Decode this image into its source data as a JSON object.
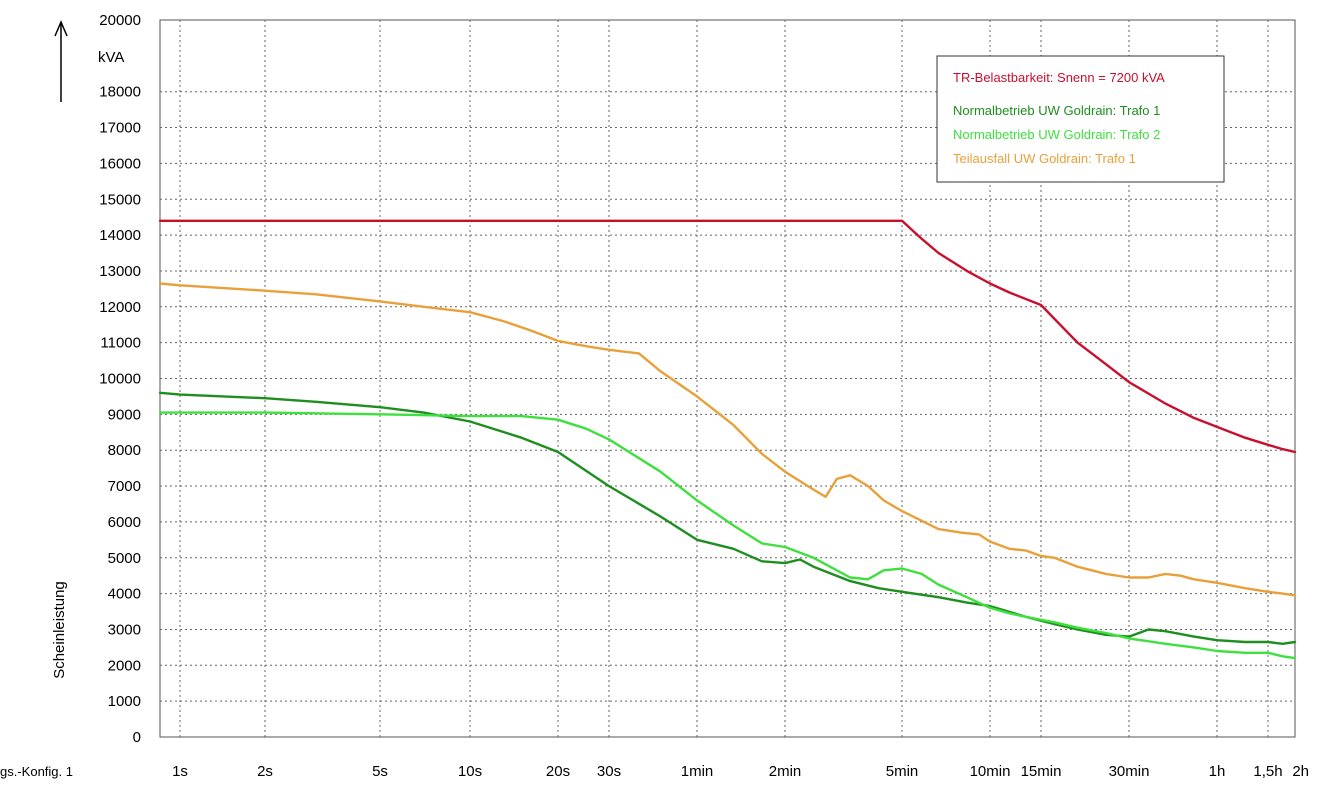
{
  "footnote": "gs.-Konfig. 1",
  "chart_data": {
    "type": "line",
    "title": "",
    "xlabel": "",
    "ylabel": "Scheinleistung",
    "yunit": "kVA",
    "xscale": "log",
    "ylim": [
      0,
      20000
    ],
    "y_ticks": [
      0,
      1000,
      2000,
      3000,
      4000,
      5000,
      6000,
      7000,
      8000,
      9000,
      10000,
      11000,
      12000,
      13000,
      14000,
      15000,
      16000,
      17000,
      18000,
      20000
    ],
    "x_ticks": [
      {
        "label": "1s",
        "seconds": 1
      },
      {
        "label": "2s",
        "seconds": 2
      },
      {
        "label": "5s",
        "seconds": 5
      },
      {
        "label": "10s",
        "seconds": 10
      },
      {
        "label": "20s",
        "seconds": 20
      },
      {
        "label": "30s",
        "seconds": 30
      },
      {
        "label": "1min",
        "seconds": 60
      },
      {
        "label": "2min",
        "seconds": 120
      },
      {
        "label": "5min",
        "seconds": 300
      },
      {
        "label": "10min",
        "seconds": 600
      },
      {
        "label": "15min",
        "seconds": 900
      },
      {
        "label": "30min",
        "seconds": 1800
      },
      {
        "label": "1h",
        "seconds": 3600
      },
      {
        "label": "1,5h",
        "seconds": 5400
      },
      {
        "label": "2h",
        "seconds": 7200
      }
    ],
    "grid": true,
    "legend_position": "top-right",
    "series": [
      {
        "name": "TR-Belastbarkeit: Snenn = 7200 kVA",
        "color": "#c8102e",
        "points": [
          [
            0.8,
            14400
          ],
          [
            300,
            14400
          ],
          [
            350,
            13900
          ],
          [
            400,
            13500
          ],
          [
            500,
            13000
          ],
          [
            600,
            12650
          ],
          [
            700,
            12400
          ],
          [
            900,
            12050
          ],
          [
            1200,
            11000
          ],
          [
            1500,
            10400
          ],
          [
            1800,
            9900
          ],
          [
            2400,
            9300
          ],
          [
            3000,
            8900
          ],
          [
            3600,
            8650
          ],
          [
            4500,
            8350
          ],
          [
            5400,
            8150
          ],
          [
            6300,
            8030
          ],
          [
            7200,
            7950
          ]
        ]
      },
      {
        "name": "Normalbetrieb UW Goldrain: Trafo 1",
        "color": "#1e8e1e",
        "points": [
          [
            0.8,
            9600
          ],
          [
            1,
            9550
          ],
          [
            2,
            9450
          ],
          [
            3,
            9350
          ],
          [
            5,
            9200
          ],
          [
            7,
            9050
          ],
          [
            10,
            8800
          ],
          [
            15,
            8350
          ],
          [
            20,
            7950
          ],
          [
            30,
            7000
          ],
          [
            45,
            6150
          ],
          [
            60,
            5500
          ],
          [
            80,
            5250
          ],
          [
            100,
            4900
          ],
          [
            120,
            4850
          ],
          [
            135,
            4950
          ],
          [
            150,
            4750
          ],
          [
            200,
            4350
          ],
          [
            250,
            4150
          ],
          [
            300,
            4050
          ],
          [
            400,
            3900
          ],
          [
            500,
            3750
          ],
          [
            600,
            3650
          ],
          [
            800,
            3350
          ],
          [
            1000,
            3150
          ],
          [
            1200,
            3000
          ],
          [
            1500,
            2850
          ],
          [
            1800,
            2800
          ],
          [
            2100,
            3000
          ],
          [
            2400,
            2950
          ],
          [
            3000,
            2800
          ],
          [
            3600,
            2700
          ],
          [
            4500,
            2650
          ],
          [
            5400,
            2650
          ],
          [
            6300,
            2600
          ],
          [
            7200,
            2650
          ]
        ]
      },
      {
        "name": "Normalbetrieb UW Goldrain: Trafo 2",
        "color": "#3ee03e",
        "points": [
          [
            0.8,
            9050
          ],
          [
            1,
            9050
          ],
          [
            2,
            9050
          ],
          [
            5,
            9000
          ],
          [
            10,
            8950
          ],
          [
            15,
            8950
          ],
          [
            20,
            8850
          ],
          [
            25,
            8600
          ],
          [
            30,
            8300
          ],
          [
            45,
            7400
          ],
          [
            60,
            6600
          ],
          [
            80,
            5900
          ],
          [
            100,
            5400
          ],
          [
            120,
            5300
          ],
          [
            150,
            5000
          ],
          [
            180,
            4650
          ],
          [
            200,
            4450
          ],
          [
            230,
            4400
          ],
          [
            260,
            4650
          ],
          [
            300,
            4700
          ],
          [
            350,
            4550
          ],
          [
            400,
            4250
          ],
          [
            500,
            3900
          ],
          [
            600,
            3600
          ],
          [
            700,
            3450
          ],
          [
            800,
            3350
          ],
          [
            1000,
            3200
          ],
          [
            1200,
            3050
          ],
          [
            1500,
            2900
          ],
          [
            1800,
            2750
          ],
          [
            2400,
            2600
          ],
          [
            3000,
            2500
          ],
          [
            3600,
            2400
          ],
          [
            4500,
            2350
          ],
          [
            5400,
            2350
          ],
          [
            6300,
            2250
          ],
          [
            7200,
            2200
          ]
        ]
      },
      {
        "name": "Teilausfall UW Goldrain: Trafo 1",
        "color": "#e8a03a",
        "points": [
          [
            0.8,
            12650
          ],
          [
            1,
            12600
          ],
          [
            2,
            12450
          ],
          [
            3,
            12350
          ],
          [
            5,
            12150
          ],
          [
            7,
            12000
          ],
          [
            10,
            11850
          ],
          [
            13,
            11600
          ],
          [
            16,
            11350
          ],
          [
            20,
            11050
          ],
          [
            25,
            10900
          ],
          [
            30,
            10800
          ],
          [
            38,
            10700
          ],
          [
            45,
            10200
          ],
          [
            60,
            9500
          ],
          [
            80,
            8700
          ],
          [
            100,
            7900
          ],
          [
            120,
            7400
          ],
          [
            150,
            6900
          ],
          [
            165,
            6700
          ],
          [
            180,
            7200
          ],
          [
            200,
            7300
          ],
          [
            230,
            7000
          ],
          [
            260,
            6600
          ],
          [
            300,
            6300
          ],
          [
            400,
            5800
          ],
          [
            480,
            5700
          ],
          [
            550,
            5650
          ],
          [
            600,
            5450
          ],
          [
            700,
            5250
          ],
          [
            800,
            5200
          ],
          [
            900,
            5050
          ],
          [
            1000,
            5000
          ],
          [
            1200,
            4750
          ],
          [
            1500,
            4550
          ],
          [
            1800,
            4450
          ],
          [
            2100,
            4450
          ],
          [
            2400,
            4550
          ],
          [
            2700,
            4500
          ],
          [
            3000,
            4400
          ],
          [
            3600,
            4300
          ],
          [
            4500,
            4150
          ],
          [
            5400,
            4050
          ],
          [
            6300,
            4000
          ],
          [
            7200,
            3950
          ]
        ]
      }
    ]
  }
}
